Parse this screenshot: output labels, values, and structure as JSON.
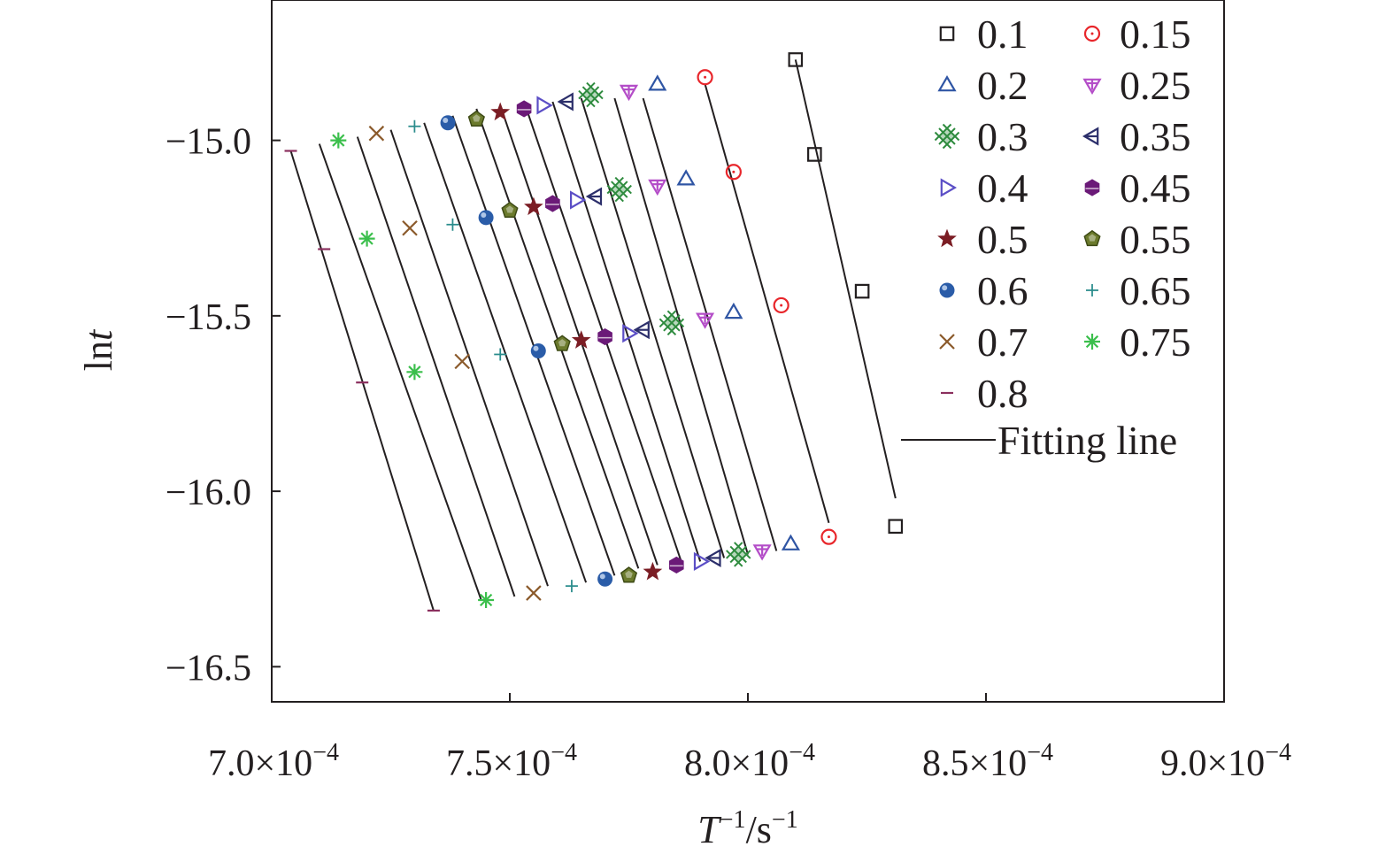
{
  "chart_data": {
    "type": "scatter",
    "title": "",
    "xlabel": "T",
    "xlabel_sup1": "−1",
    "xlabel_mid": "/s",
    "xlabel_sup2": "−1",
    "ylabel_main": "ln",
    "ylabel_italic": "t",
    "xlim": [
      0.0007,
      0.0009
    ],
    "ylim": [
      -16.6,
      -14.6
    ],
    "xticks": [
      {
        "value": 0.0007,
        "mant": "7.0×10",
        "exp": "−4"
      },
      {
        "value": 0.00075,
        "mant": "7.5×10",
        "exp": "−4"
      },
      {
        "value": 0.0008,
        "mant": "8.0×10",
        "exp": "−4"
      },
      {
        "value": 0.00085,
        "mant": "8.5×10",
        "exp": "−4"
      },
      {
        "value": 0.0009,
        "mant": "9.0×10",
        "exp": "−4"
      }
    ],
    "yticks": [
      {
        "value": -15.0,
        "label": "−15.0"
      },
      {
        "value": -15.5,
        "label": "−15.5"
      },
      {
        "value": -16.0,
        "label": "−16.0"
      },
      {
        "value": -16.5,
        "label": "−16.5"
      }
    ],
    "grid": false,
    "legend_position": "top-right",
    "fit_label": "Fitting line",
    "series": [
      {
        "name": "0.1",
        "marker": "square",
        "color": "#231f20",
        "x": [
          0.00081,
          0.000814,
          0.000824,
          0.000831
        ],
        "y": [
          -14.77,
          -15.04,
          -15.43,
          -16.1
        ],
        "fit": [
          [
            0.00081,
            -14.77
          ],
          [
            0.000831,
            -16.02
          ]
        ]
      },
      {
        "name": "0.15",
        "marker": "circle-dot",
        "color": "#e8262b",
        "x": [
          0.000791,
          0.000797,
          0.000807,
          0.000817
        ],
        "y": [
          -14.82,
          -15.09,
          -15.47,
          -16.13
        ],
        "fit": [
          [
            0.000791,
            -14.84
          ],
          [
            0.000817,
            -16.09
          ]
        ]
      },
      {
        "name": "0.2",
        "marker": "triangle-up",
        "color": "#2f55a4",
        "x": [
          0.000781,
          0.000787,
          0.000797,
          0.000809
        ],
        "y": [
          -14.84,
          -15.11,
          -15.49,
          -16.15
        ],
        "fit": [
          [
            0.000778,
            -14.88
          ],
          [
            0.000806,
            -16.17
          ]
        ]
      },
      {
        "name": "0.25",
        "marker": "triangle-down-plus",
        "color": "#b44dc8",
        "x": [
          0.000775,
          0.000781,
          0.000791,
          0.000803
        ],
        "y": [
          -14.86,
          -15.13,
          -15.51,
          -16.17
        ],
        "fit": [
          [
            0.000772,
            -14.88
          ],
          [
            0.0008,
            -16.18
          ]
        ]
      },
      {
        "name": "0.3",
        "marker": "crosshatch",
        "color": "#2e8b3e",
        "x": [
          0.000767,
          0.000773,
          0.000784,
          0.000798
        ],
        "y": [
          -14.87,
          -15.14,
          -15.52,
          -16.18
        ],
        "fit": [
          [
            0.000765,
            -14.88
          ],
          [
            0.000795,
            -16.19
          ]
        ]
      },
      {
        "name": "0.35",
        "marker": "triangle-left",
        "color": "#2c2f6b",
        "x": [
          0.000762,
          0.000768,
          0.000778,
          0.000793
        ],
        "y": [
          -14.89,
          -15.16,
          -15.54,
          -16.19
        ],
        "fit": [
          [
            0.000759,
            -14.89
          ],
          [
            0.00079,
            -16.2
          ]
        ]
      },
      {
        "name": "0.4",
        "marker": "triangle-right",
        "color": "#5b4ec6",
        "x": [
          0.000757,
          0.000764,
          0.000775,
          0.00079
        ],
        "y": [
          -14.9,
          -15.17,
          -15.55,
          -16.2
        ],
        "fit": [
          [
            0.000753,
            -14.89
          ],
          [
            0.000786,
            -16.2
          ]
        ]
      },
      {
        "name": "0.45",
        "marker": "hexagon",
        "color": "#6b1a78",
        "x": [
          0.000753,
          0.000759,
          0.00077,
          0.000785
        ],
        "y": [
          -14.91,
          -15.18,
          -15.56,
          -16.21
        ],
        "fit": [
          [
            0.000748,
            -14.9
          ],
          [
            0.000781,
            -16.21
          ]
        ]
      },
      {
        "name": "0.5",
        "marker": "star",
        "color": "#7b1d24",
        "x": [
          0.000748,
          0.000755,
          0.000765,
          0.00078
        ],
        "y": [
          -14.92,
          -15.19,
          -15.57,
          -16.23
        ],
        "fit": [
          [
            0.000743,
            -14.91
          ],
          [
            0.000777,
            -16.22
          ]
        ]
      },
      {
        "name": "0.55",
        "marker": "pentagon",
        "color": "#6b7a2c",
        "x": [
          0.000743,
          0.00075,
          0.000761,
          0.000775
        ],
        "y": [
          -14.94,
          -15.2,
          -15.58,
          -16.24
        ],
        "fit": [
          [
            0.000738,
            -14.93
          ],
          [
            0.000772,
            -16.24
          ]
        ]
      },
      {
        "name": "0.6",
        "marker": "sphere",
        "color": "#2a5ca8",
        "x": [
          0.000737,
          0.000745,
          0.000756,
          0.00077
        ],
        "y": [
          -14.95,
          -15.22,
          -15.6,
          -16.25
        ],
        "fit": [
          [
            0.000732,
            -14.95
          ],
          [
            0.000766,
            -16.26
          ]
        ]
      },
      {
        "name": "0.65",
        "marker": "plus",
        "color": "#2a8c8c",
        "x": [
          0.00073,
          0.000738,
          0.000748,
          0.000763
        ],
        "y": [
          -14.96,
          -15.24,
          -15.61,
          -16.27
        ],
        "fit": [
          [
            0.000725,
            -14.97
          ],
          [
            0.000758,
            -16.27
          ]
        ]
      },
      {
        "name": "0.7",
        "marker": "cross",
        "color": "#8b5a2b",
        "x": [
          0.000722,
          0.000729,
          0.00074,
          0.000755
        ],
        "y": [
          -14.98,
          -15.25,
          -15.63,
          -16.29
        ],
        "fit": [
          [
            0.000718,
            -14.99
          ],
          [
            0.000751,
            -16.3
          ]
        ]
      },
      {
        "name": "0.75",
        "marker": "asterisk",
        "color": "#3bbf4c",
        "x": [
          0.000714,
          0.00072,
          0.00073,
          0.000745
        ],
        "y": [
          -15.0,
          -15.28,
          -15.66,
          -16.31
        ],
        "fit": [
          [
            0.00071,
            -15.01
          ],
          [
            0.000744,
            -16.31
          ]
        ]
      },
      {
        "name": "0.8",
        "marker": "dash",
        "color": "#8b2f5e",
        "x": [
          0.000704,
          0.000711,
          0.000719,
          0.000734
        ],
        "y": [
          -15.03,
          -15.31,
          -15.69,
          -16.34
        ],
        "fit": [
          [
            0.000704,
            -15.03
          ],
          [
            0.000734,
            -16.34
          ]
        ]
      }
    ]
  }
}
